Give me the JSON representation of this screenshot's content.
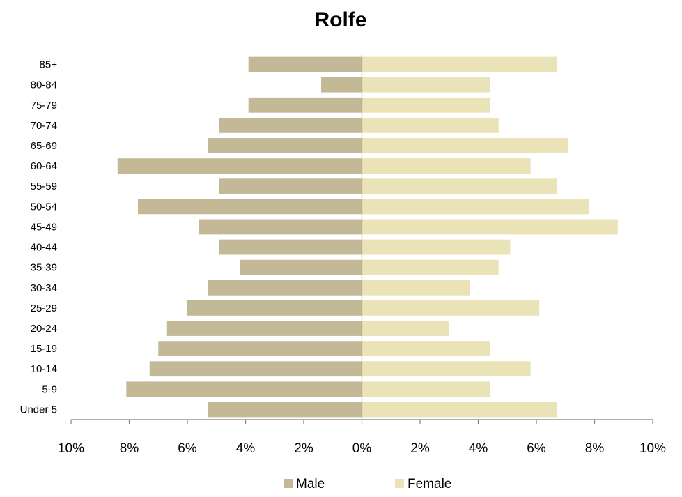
{
  "chart_data": {
    "type": "bar",
    "orientation": "horizontal",
    "title": "Rolfe",
    "categories": [
      "Under 5",
      "5-9",
      "10-14",
      "15-19",
      "20-24",
      "25-29",
      "30-34",
      "35-39",
      "40-44",
      "45-49",
      "50-54",
      "55-59",
      "60-64",
      "65-69",
      "70-74",
      "75-79",
      "80-84",
      "85+"
    ],
    "series": [
      {
        "name": "Male",
        "color": "#c4b996",
        "direction": "left",
        "values": [
          5.3,
          8.1,
          7.3,
          7.0,
          6.7,
          6.0,
          5.3,
          4.2,
          4.9,
          5.6,
          7.7,
          4.9,
          8.4,
          5.3,
          4.9,
          3.9,
          1.4,
          3.9
        ]
      },
      {
        "name": "Female",
        "color": "#ebe3b8",
        "direction": "right",
        "values": [
          6.7,
          4.4,
          5.8,
          4.4,
          3.0,
          6.1,
          3.7,
          4.7,
          5.1,
          8.8,
          7.8,
          6.7,
          5.8,
          7.1,
          4.7,
          4.4,
          4.4,
          6.7
        ]
      }
    ],
    "xlim": [
      -10,
      10
    ],
    "xticks": [
      -10,
      -8,
      -6,
      -4,
      -2,
      0,
      2,
      4,
      6,
      8,
      10
    ],
    "xtick_labels": [
      "10%",
      "8%",
      "6%",
      "4%",
      "2%",
      "0%",
      "2%",
      "4%",
      "6%",
      "8%",
      "10%"
    ],
    "xlabel": "",
    "ylabel": "",
    "grid": false,
    "legend_position": "bottom"
  }
}
